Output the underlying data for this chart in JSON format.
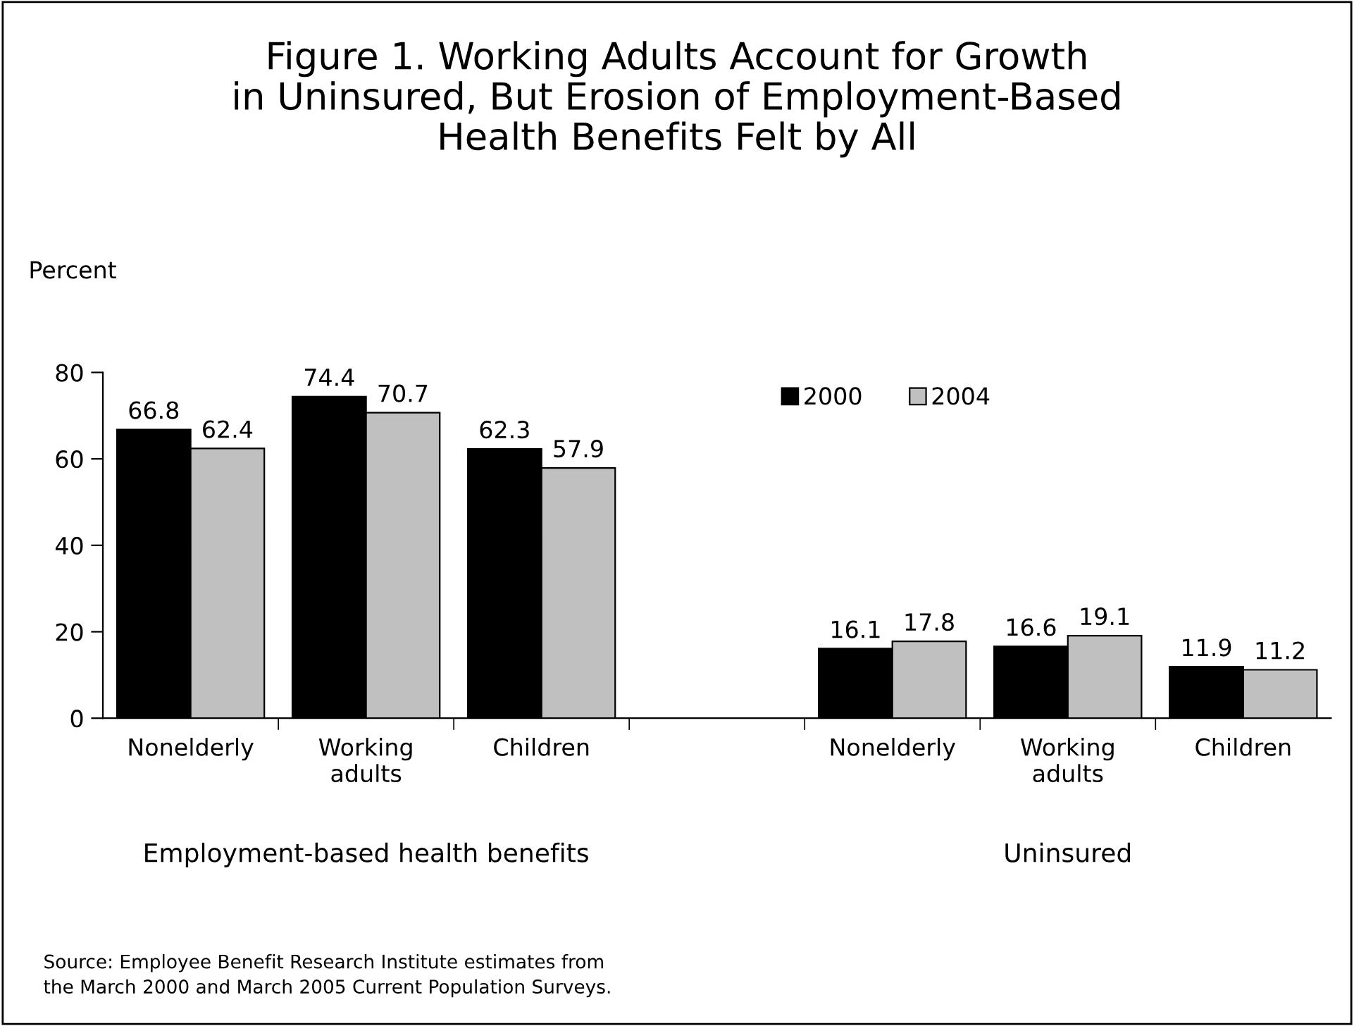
{
  "chart_data": {
    "type": "bar",
    "title": "Figure 1. Working Adults Account for Growth\nin Uninsured, But Erosion of Employment-Based\nHealth Benefits Felt by All",
    "ylabel": "Percent",
    "categories": [
      "Nonelderly",
      "Working\nadults",
      "Children",
      null,
      "Nonelderly",
      "Working\nadults",
      "Children"
    ],
    "series": [
      {
        "name": "2000",
        "color": "#000000",
        "values": [
          66.8,
          74.4,
          62.3,
          null,
          16.1,
          16.6,
          11.9
        ]
      },
      {
        "name": "2004",
        "color": "#c0c0c0",
        "values": [
          62.4,
          70.7,
          57.9,
          null,
          17.8,
          19.1,
          11.2
        ]
      }
    ],
    "ylim": [
      0,
      80
    ],
    "yticks": [
      0,
      20,
      40,
      60,
      80
    ],
    "data_labels": true,
    "legend": "top right",
    "grid": false,
    "annotations": [
      "Employment-based health benefits",
      "Uninsured",
      "Source: Employee Benefit Research Institute estimates from\nthe March 2000 and March 2005 Current Population Surveys."
    ]
  }
}
